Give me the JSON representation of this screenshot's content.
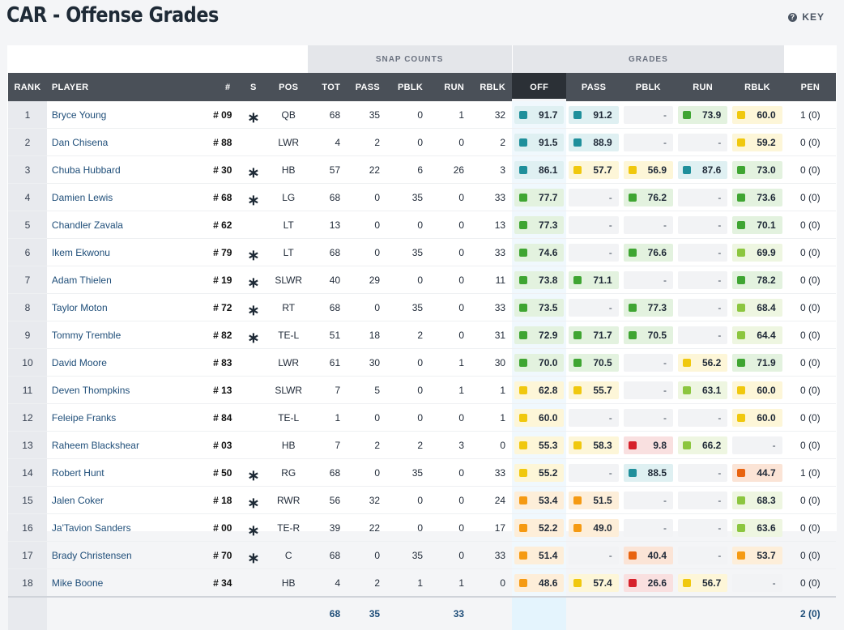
{
  "page": {
    "title": "CAR - Offense Grades",
    "key_label": "KEY",
    "key_icon": "question-icon"
  },
  "groups": {
    "snap_counts": "SNAP COUNTS",
    "grades": "GRADES"
  },
  "columns": {
    "rank": "RANK",
    "player": "PLAYER",
    "num": "#",
    "s": "S",
    "pos": "POS",
    "tot": "TOT",
    "pass": "PASS",
    "pblk": "PBLK",
    "run": "RUN",
    "rblk": "RBLK",
    "g_off": "OFF",
    "g_pass": "PASS",
    "g_pblk": "PBLK",
    "g_run": "RUN",
    "g_rblk": "RBLK",
    "pen": "PEN"
  },
  "grade_colors": {
    "teal": "#1f8f9b",
    "green": "#3fa532",
    "lime": "#8cc63f",
    "yellow": "#f0c80e",
    "orange": "#f59a12",
    "darkorange": "#e8630f",
    "red": "#d6212b"
  },
  "grade_bg": {
    "teal": "#dff0f2",
    "green": "#e3f2df",
    "lime": "#eef6e1",
    "yellow": "#fdf6d8",
    "orange": "#fdeed9",
    "darkorange": "#fbe4d6",
    "red": "#f9e0e0"
  },
  "rows": [
    {
      "rank": "1",
      "player": "Bryce Young",
      "num": "09",
      "s": true,
      "pos": "QB",
      "tot": "68",
      "pass": "35",
      "pblk": "0",
      "run": "1",
      "rblk": "32",
      "grades": [
        {
          "v": "91.7",
          "c": "teal"
        },
        {
          "v": "91.2",
          "c": "teal"
        },
        {
          "v": "-",
          "c": ""
        },
        {
          "v": "73.9",
          "c": "green"
        },
        {
          "v": "60.0",
          "c": "yellow"
        }
      ],
      "pen": "1 (0)"
    },
    {
      "rank": "2",
      "player": "Dan Chisena",
      "num": "88",
      "s": false,
      "pos": "LWR",
      "tot": "4",
      "pass": "2",
      "pblk": "0",
      "run": "0",
      "rblk": "2",
      "grades": [
        {
          "v": "91.5",
          "c": "teal"
        },
        {
          "v": "88.9",
          "c": "teal"
        },
        {
          "v": "-",
          "c": ""
        },
        {
          "v": "-",
          "c": ""
        },
        {
          "v": "59.2",
          "c": "yellow"
        }
      ],
      "pen": "0 (0)"
    },
    {
      "rank": "3",
      "player": "Chuba Hubbard",
      "num": "30",
      "s": true,
      "pos": "HB",
      "tot": "57",
      "pass": "22",
      "pblk": "6",
      "run": "26",
      "rblk": "3",
      "grades": [
        {
          "v": "86.1",
          "c": "teal"
        },
        {
          "v": "57.7",
          "c": "yellow"
        },
        {
          "v": "56.9",
          "c": "yellow"
        },
        {
          "v": "87.6",
          "c": "teal"
        },
        {
          "v": "73.0",
          "c": "green"
        }
      ],
      "pen": "0 (0)"
    },
    {
      "rank": "4",
      "player": "Damien Lewis",
      "num": "68",
      "s": true,
      "pos": "LG",
      "tot": "68",
      "pass": "0",
      "pblk": "35",
      "run": "0",
      "rblk": "33",
      "grades": [
        {
          "v": "77.7",
          "c": "green"
        },
        {
          "v": "-",
          "c": ""
        },
        {
          "v": "76.2",
          "c": "green"
        },
        {
          "v": "-",
          "c": ""
        },
        {
          "v": "73.6",
          "c": "green"
        }
      ],
      "pen": "0 (0)"
    },
    {
      "rank": "5",
      "player": "Chandler Zavala",
      "num": "62",
      "s": false,
      "pos": "LT",
      "tot": "13",
      "pass": "0",
      "pblk": "0",
      "run": "0",
      "rblk": "13",
      "grades": [
        {
          "v": "77.3",
          "c": "green"
        },
        {
          "v": "-",
          "c": ""
        },
        {
          "v": "-",
          "c": ""
        },
        {
          "v": "-",
          "c": ""
        },
        {
          "v": "70.1",
          "c": "green"
        }
      ],
      "pen": "0 (0)"
    },
    {
      "rank": "6",
      "player": "Ikem Ekwonu",
      "num": "79",
      "s": true,
      "pos": "LT",
      "tot": "68",
      "pass": "0",
      "pblk": "35",
      "run": "0",
      "rblk": "33",
      "grades": [
        {
          "v": "74.6",
          "c": "green"
        },
        {
          "v": "-",
          "c": ""
        },
        {
          "v": "76.6",
          "c": "green"
        },
        {
          "v": "-",
          "c": ""
        },
        {
          "v": "69.9",
          "c": "lime"
        }
      ],
      "pen": "0 (0)"
    },
    {
      "rank": "7",
      "player": "Adam Thielen",
      "num": "19",
      "s": true,
      "pos": "SLWR",
      "tot": "40",
      "pass": "29",
      "pblk": "0",
      "run": "0",
      "rblk": "11",
      "grades": [
        {
          "v": "73.8",
          "c": "green"
        },
        {
          "v": "71.1",
          "c": "green"
        },
        {
          "v": "-",
          "c": ""
        },
        {
          "v": "-",
          "c": ""
        },
        {
          "v": "78.2",
          "c": "green"
        }
      ],
      "pen": "0 (0)"
    },
    {
      "rank": "8",
      "player": "Taylor Moton",
      "num": "72",
      "s": true,
      "pos": "RT",
      "tot": "68",
      "pass": "0",
      "pblk": "35",
      "run": "0",
      "rblk": "33",
      "grades": [
        {
          "v": "73.5",
          "c": "green"
        },
        {
          "v": "-",
          "c": ""
        },
        {
          "v": "77.3",
          "c": "green"
        },
        {
          "v": "-",
          "c": ""
        },
        {
          "v": "68.4",
          "c": "lime"
        }
      ],
      "pen": "0 (0)"
    },
    {
      "rank": "9",
      "player": "Tommy Tremble",
      "num": "82",
      "s": true,
      "pos": "TE-L",
      "tot": "51",
      "pass": "18",
      "pblk": "2",
      "run": "0",
      "rblk": "31",
      "grades": [
        {
          "v": "72.9",
          "c": "green"
        },
        {
          "v": "71.7",
          "c": "green"
        },
        {
          "v": "70.5",
          "c": "green"
        },
        {
          "v": "-",
          "c": ""
        },
        {
          "v": "64.4",
          "c": "lime"
        }
      ],
      "pen": "0 (0)"
    },
    {
      "rank": "10",
      "player": "David Moore",
      "num": "83",
      "s": false,
      "pos": "LWR",
      "tot": "61",
      "pass": "30",
      "pblk": "0",
      "run": "1",
      "rblk": "30",
      "grades": [
        {
          "v": "70.0",
          "c": "green"
        },
        {
          "v": "70.5",
          "c": "green"
        },
        {
          "v": "-",
          "c": ""
        },
        {
          "v": "56.2",
          "c": "yellow"
        },
        {
          "v": "71.9",
          "c": "green"
        }
      ],
      "pen": "0 (0)"
    },
    {
      "rank": "11",
      "player": "Deven Thompkins",
      "num": "13",
      "s": false,
      "pos": "SLWR",
      "tot": "7",
      "pass": "5",
      "pblk": "0",
      "run": "1",
      "rblk": "1",
      "grades": [
        {
          "v": "62.8",
          "c": "yellow"
        },
        {
          "v": "55.7",
          "c": "yellow"
        },
        {
          "v": "-",
          "c": ""
        },
        {
          "v": "63.1",
          "c": "lime"
        },
        {
          "v": "60.0",
          "c": "yellow"
        }
      ],
      "pen": "0 (0)"
    },
    {
      "rank": "12",
      "player": "Feleipe Franks",
      "num": "84",
      "s": false,
      "pos": "TE-L",
      "tot": "1",
      "pass": "0",
      "pblk": "0",
      "run": "0",
      "rblk": "1",
      "grades": [
        {
          "v": "60.0",
          "c": "yellow"
        },
        {
          "v": "-",
          "c": ""
        },
        {
          "v": "-",
          "c": ""
        },
        {
          "v": "-",
          "c": ""
        },
        {
          "v": "60.0",
          "c": "yellow"
        }
      ],
      "pen": "0 (0)"
    },
    {
      "rank": "13",
      "player": "Raheem Blackshear",
      "num": "03",
      "s": false,
      "pos": "HB",
      "tot": "7",
      "pass": "2",
      "pblk": "2",
      "run": "3",
      "rblk": "0",
      "grades": [
        {
          "v": "55.3",
          "c": "yellow"
        },
        {
          "v": "58.3",
          "c": "yellow"
        },
        {
          "v": "9.8",
          "c": "red"
        },
        {
          "v": "66.2",
          "c": "lime"
        },
        {
          "v": "-",
          "c": ""
        }
      ],
      "pen": "0 (0)"
    },
    {
      "rank": "14",
      "player": "Robert Hunt",
      "num": "50",
      "s": true,
      "pos": "RG",
      "tot": "68",
      "pass": "0",
      "pblk": "35",
      "run": "0",
      "rblk": "33",
      "grades": [
        {
          "v": "55.2",
          "c": "yellow"
        },
        {
          "v": "-",
          "c": ""
        },
        {
          "v": "88.5",
          "c": "teal"
        },
        {
          "v": "-",
          "c": ""
        },
        {
          "v": "44.7",
          "c": "darkorange"
        }
      ],
      "pen": "1 (0)"
    },
    {
      "rank": "15",
      "player": "Jalen Coker",
      "num": "18",
      "s": true,
      "pos": "RWR",
      "tot": "56",
      "pass": "32",
      "pblk": "0",
      "run": "0",
      "rblk": "24",
      "grades": [
        {
          "v": "53.4",
          "c": "orange"
        },
        {
          "v": "51.5",
          "c": "orange"
        },
        {
          "v": "-",
          "c": ""
        },
        {
          "v": "-",
          "c": ""
        },
        {
          "v": "68.3",
          "c": "lime"
        }
      ],
      "pen": "0 (0)"
    },
    {
      "rank": "16",
      "player": "Ja'Tavion Sanders",
      "num": "00",
      "s": true,
      "pos": "TE-R",
      "tot": "39",
      "pass": "22",
      "pblk": "0",
      "run": "0",
      "rblk": "17",
      "grades": [
        {
          "v": "52.2",
          "c": "orange"
        },
        {
          "v": "49.0",
          "c": "orange"
        },
        {
          "v": "-",
          "c": ""
        },
        {
          "v": "-",
          "c": ""
        },
        {
          "v": "63.6",
          "c": "lime"
        }
      ],
      "pen": "0 (0)"
    },
    {
      "rank": "17",
      "player": "Brady Christensen",
      "num": "70",
      "s": true,
      "pos": "C",
      "tot": "68",
      "pass": "0",
      "pblk": "35",
      "run": "0",
      "rblk": "33",
      "grades": [
        {
          "v": "51.4",
          "c": "orange"
        },
        {
          "v": "-",
          "c": ""
        },
        {
          "v": "40.4",
          "c": "darkorange"
        },
        {
          "v": "-",
          "c": ""
        },
        {
          "v": "53.7",
          "c": "orange"
        }
      ],
      "pen": "0 (0)"
    },
    {
      "rank": "18",
      "player": "Mike Boone",
      "num": "34",
      "s": false,
      "pos": "HB",
      "tot": "4",
      "pass": "2",
      "pblk": "1",
      "run": "1",
      "rblk": "0",
      "grades": [
        {
          "v": "48.6",
          "c": "orange"
        },
        {
          "v": "57.4",
          "c": "yellow"
        },
        {
          "v": "26.6",
          "c": "red"
        },
        {
          "v": "56.7",
          "c": "yellow"
        },
        {
          "v": "-",
          "c": ""
        }
      ],
      "pen": "0 (0)"
    }
  ],
  "totals": {
    "tot": "68",
    "pass": "35",
    "run": "33",
    "pen": "2 (0)"
  }
}
